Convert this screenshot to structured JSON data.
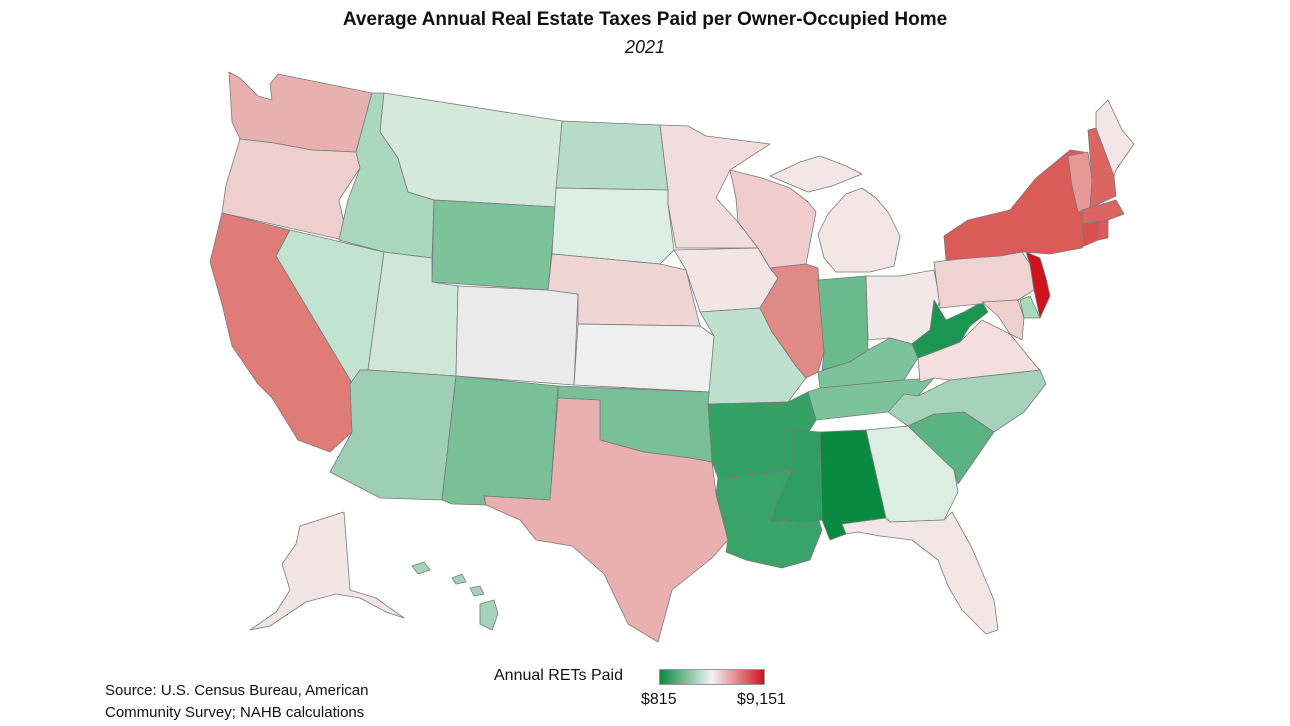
{
  "title": "Average Annual Real Estate Taxes Paid per Owner-Occupied Home",
  "subtitle": "2021",
  "legend": {
    "title": "Annual RETs Paid",
    "min_label": "$815",
    "max_label": "$9,151",
    "low_color": "#0a8a40",
    "mid_color": "#f2f2f2",
    "high_color": "#d0121e"
  },
  "source": {
    "line1": "Source: U.S. Census Bureau, American",
    "line2": "Community Survey; NAHB calculations"
  },
  "states": {
    "WA": "#e6b1ae",
    "OR": "#efcfcd",
    "CA": "#e07c78",
    "NV": "#c3e3d2",
    "ID": "#a9d8bf",
    "MT": "#d4e8dc",
    "WY": "#7cc39c",
    "UT": "#cfe6d8",
    "AZ": "#9ecfb4",
    "CO": "#ebebeb",
    "NM": "#79c099",
    "ND": "#b6dcc7",
    "SD": "#ddeee4",
    "NE": "#efd6d5",
    "KS": "#efefef",
    "OK": "#79c099",
    "TX": "#e8b1af",
    "MN": "#f1dddc",
    "IA": "#f2e5e5",
    "MO": "#bfe0ce",
    "AR": "#35a165",
    "LA": "#3aa36a",
    "WI": "#f0cdcc",
    "IL": "#e08a86",
    "MI": "#f2e6e6",
    "IN": "#6bba8e",
    "OH": "#f2e8e8",
    "KY": "#7cc39c",
    "TN": "#7cc39c",
    "MS": "#2f9e62",
    "AL": "#088a40",
    "GA": "#dcede2",
    "FL": "#f2e6e6",
    "SC": "#5bb283",
    "NC": "#a4d3b9",
    "VA": "#f2dfde",
    "WV": "#1c9553",
    "PA": "#efd3d2",
    "NY": "#da5b58",
    "VT": "#e79896",
    "NH": "#dc6461",
    "ME": "#f2e6e6",
    "MA": "#dc6461",
    "CT": "#d9504e",
    "RI": "#db5956",
    "NJ": "#d0121e",
    "DE": "#a9d8bf",
    "MD": "#efd0cf",
    "AK": "#f2e5e5",
    "HI": "#a4d3b9"
  }
}
